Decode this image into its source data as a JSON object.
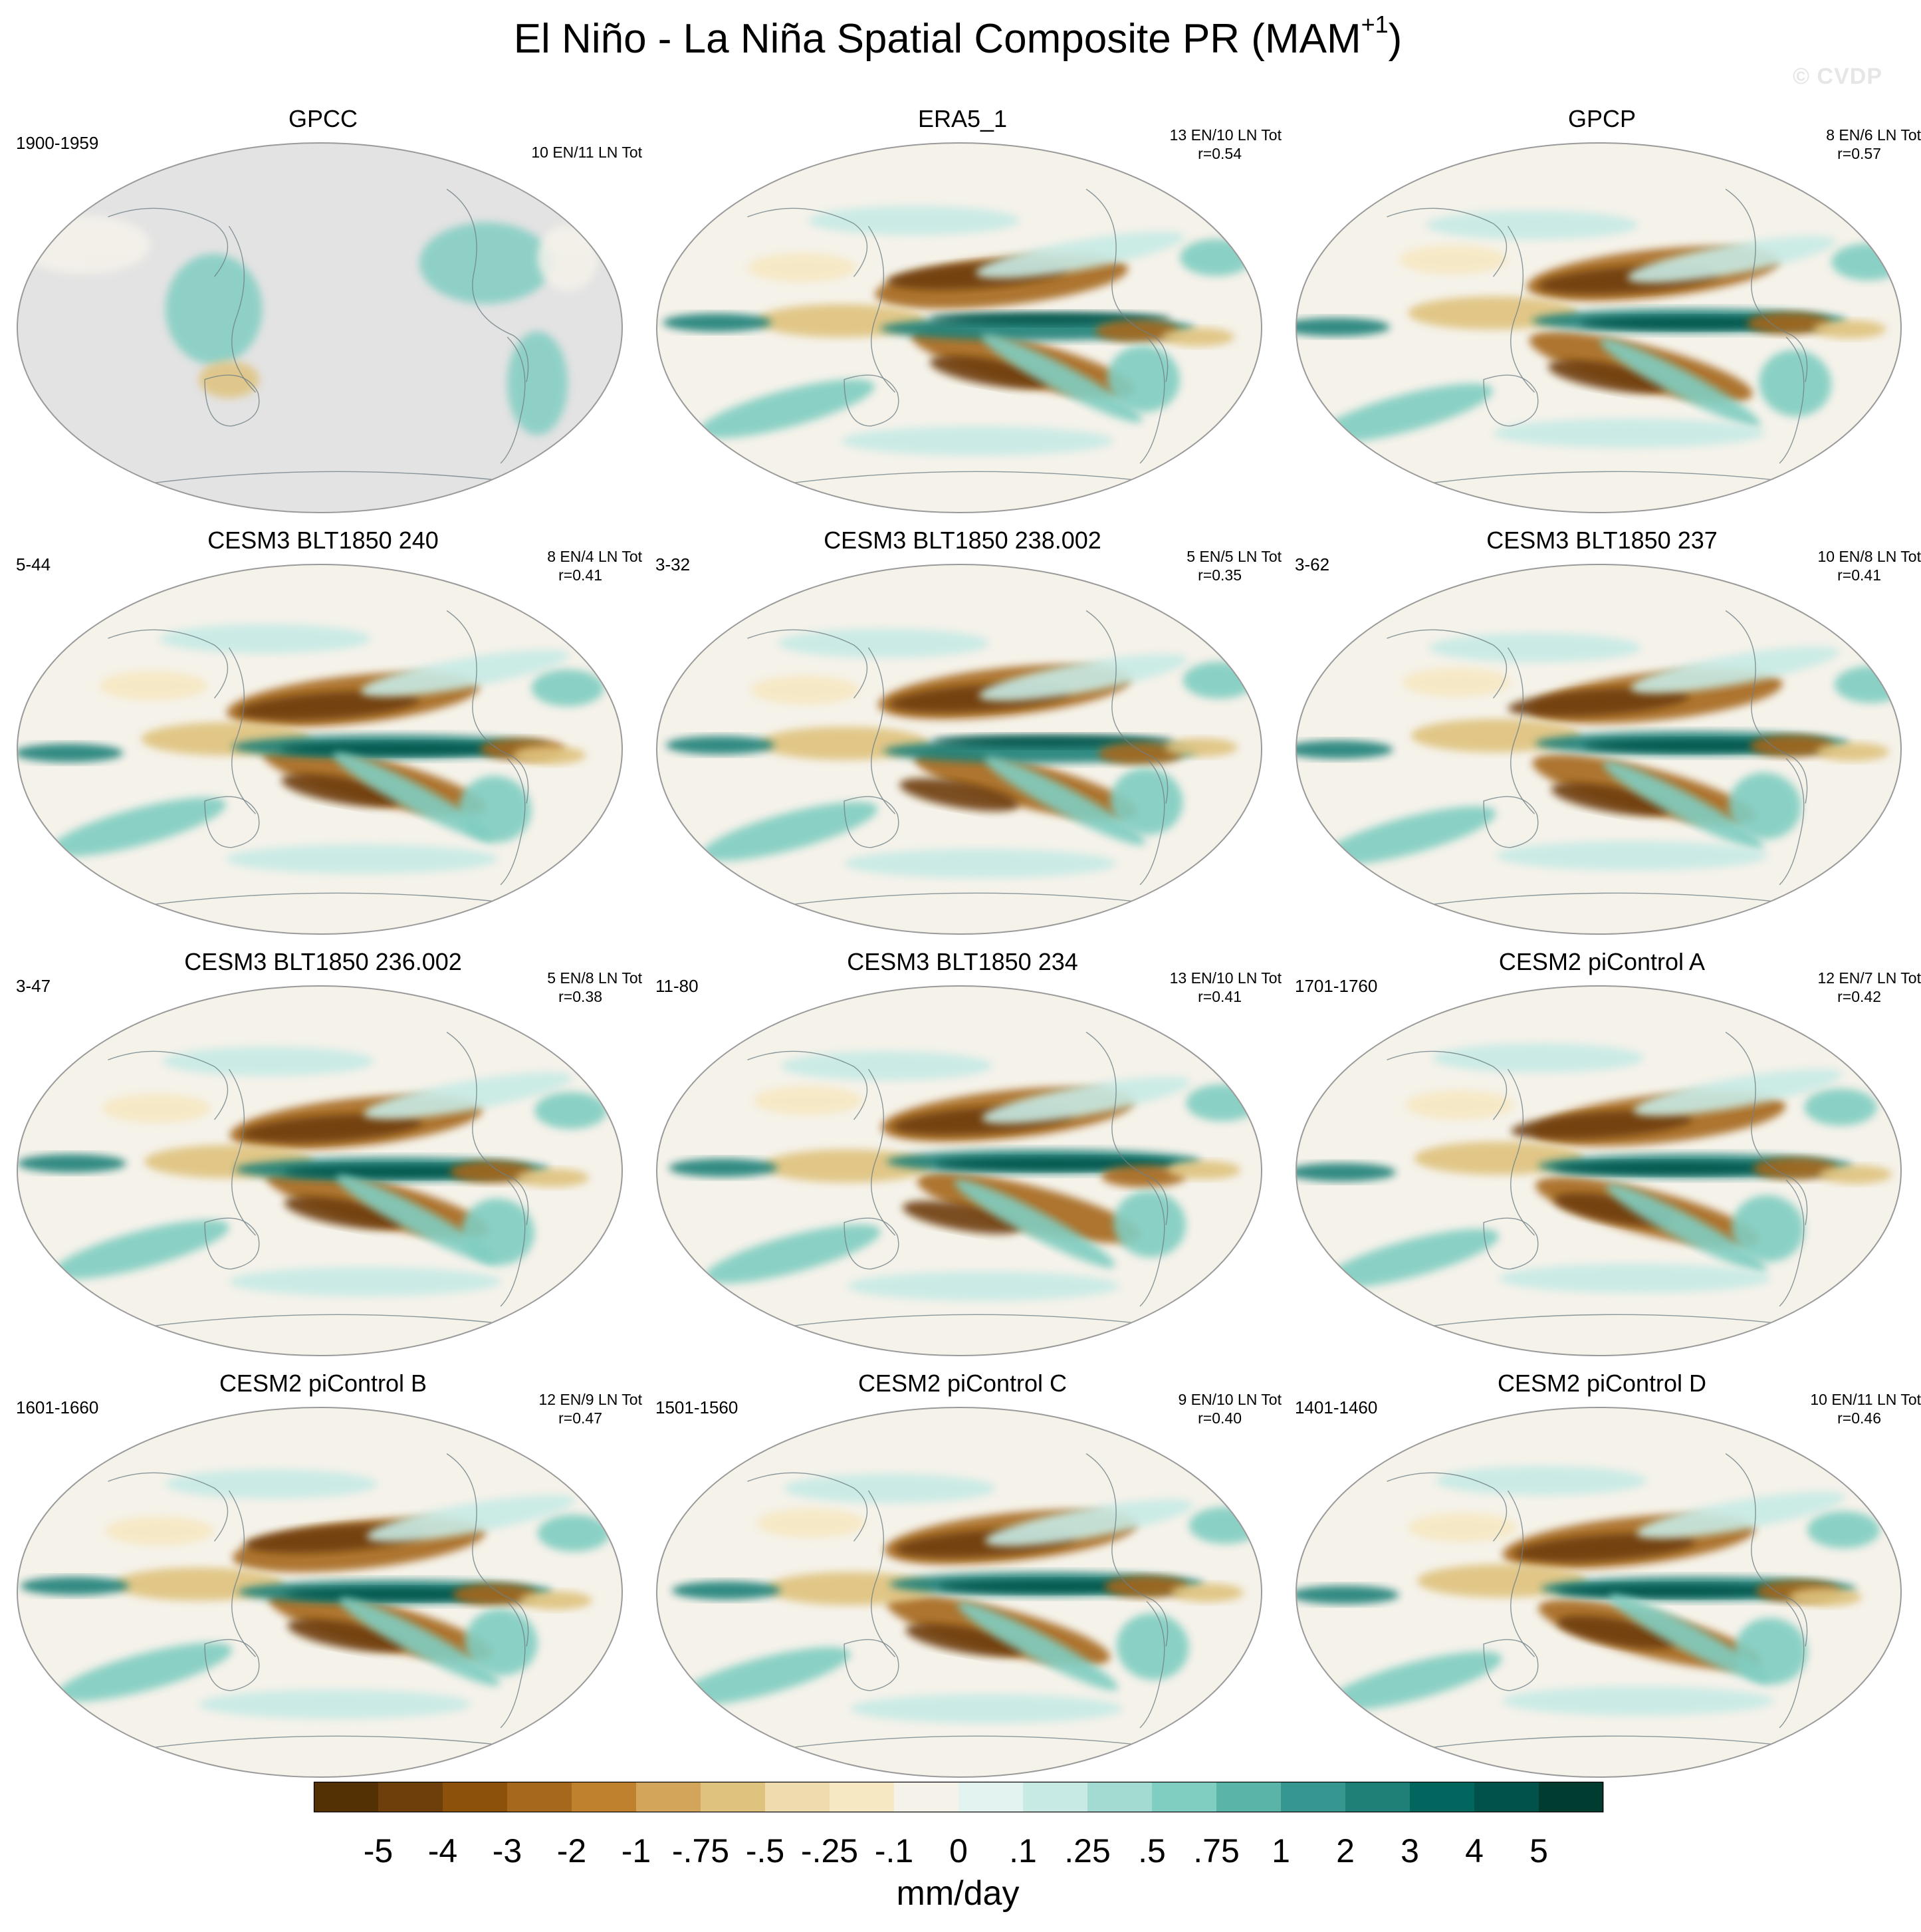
{
  "figure": {
    "title_main": "El Niño - La Niña Spatial Composite PR (MAM",
    "title_sup": "+1",
    "title_end": ")",
    "watermark": "© CVDP"
  },
  "chart_data": {
    "type": "heatmap",
    "description_variable": "PR composite difference",
    "units": "mm/day",
    "colorbar": {
      "levels": [
        "-5",
        "-4",
        "-3",
        "-2",
        "-1",
        "-.75",
        "-.5",
        "-.25",
        "-.1",
        "0",
        ".1",
        ".25",
        ".5",
        ".75",
        "1",
        "2",
        "3",
        "4",
        "5"
      ],
      "colors": [
        "#543005",
        "#6e3e0b",
        "#8c510a",
        "#a6681c",
        "#bf812d",
        "#d2a55b",
        "#dfc27d",
        "#eedcae",
        "#f6e8c3",
        "#f5f2ea",
        "#e3f3f0",
        "#c7eae5",
        "#a3dbd2",
        "#80cdc1",
        "#5ab4a8",
        "#35978f",
        "#1f8078",
        "#01665e",
        "#01524a",
        "#003c30"
      ]
    },
    "panels": [
      {
        "title": "GPCC",
        "period": "1900-1959",
        "counts": "10 EN/11 LN Tot",
        "corr": "",
        "land_only": true
      },
      {
        "title": "ERA5_1",
        "period": "",
        "counts": "13 EN/10 LN Tot",
        "corr": "r=0.54",
        "land_only": false
      },
      {
        "title": "GPCP",
        "period": "",
        "counts": "8 EN/6 LN Tot",
        "corr": "r=0.57",
        "land_only": false
      },
      {
        "title": "CESM3 BLT1850 240",
        "period": "5-44",
        "counts": "8 EN/4 LN Tot",
        "corr": "r=0.41",
        "land_only": false
      },
      {
        "title": "CESM3 BLT1850 238.002",
        "period": "3-32",
        "counts": "5 EN/5 LN Tot",
        "corr": "r=0.35",
        "land_only": false
      },
      {
        "title": "CESM3 BLT1850 237",
        "period": "3-62",
        "counts": "10 EN/8 LN Tot",
        "corr": "r=0.41",
        "land_only": false
      },
      {
        "title": "CESM3 BLT1850 236.002",
        "period": "3-47",
        "counts": "5 EN/8 LN Tot",
        "corr": "r=0.38",
        "land_only": false
      },
      {
        "title": "CESM3 BLT1850 234",
        "period": "11-80",
        "counts": "13 EN/10 LN Tot",
        "corr": "r=0.41",
        "land_only": false
      },
      {
        "title": "CESM2 piControl A",
        "period": "1701-1760",
        "counts": "12 EN/7 LN Tot",
        "corr": "r=0.42",
        "land_only": false
      },
      {
        "title": "CESM2 piControl B",
        "period": "1601-1660",
        "counts": "12 EN/9 LN Tot",
        "corr": "r=0.47",
        "land_only": false
      },
      {
        "title": "CESM2 piControl C",
        "period": "1501-1560",
        "counts": "9 EN/10 LN Tot",
        "corr": "r=0.40",
        "land_only": false
      },
      {
        "title": "CESM2 piControl D",
        "period": "1401-1460",
        "counts": "10 EN/11 LN Tot",
        "corr": "r=0.46",
        "land_only": false
      }
    ]
  }
}
